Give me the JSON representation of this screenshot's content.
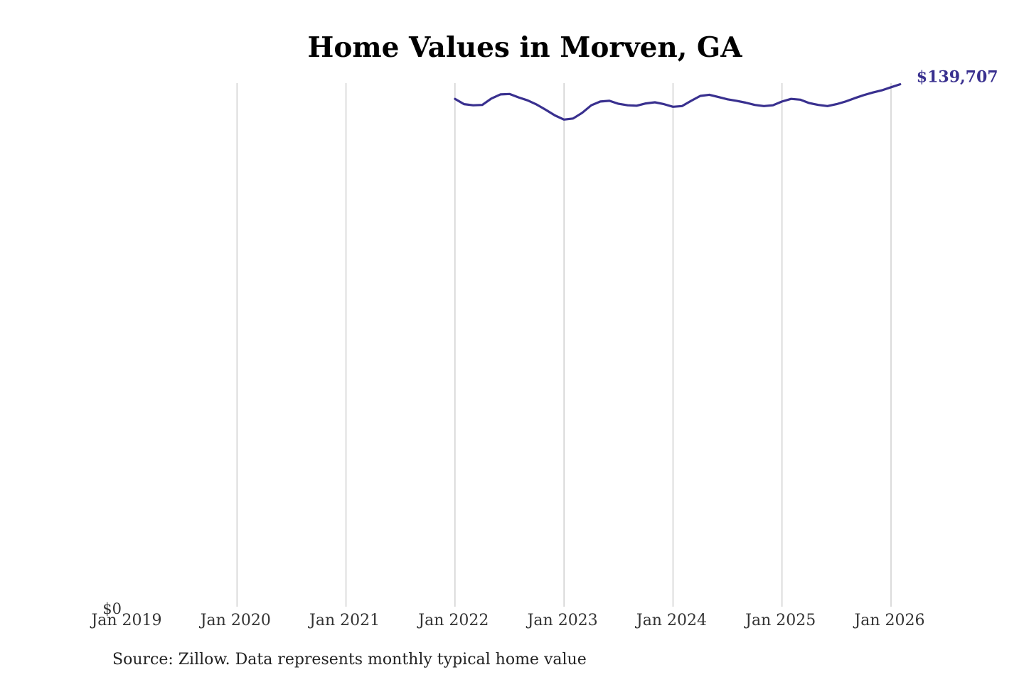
{
  "chart_data": {
    "type": "line",
    "title": "Home Values in Morven, GA",
    "xlabel": "",
    "ylabel": "",
    "x_tick_labels": [
      "Jan 2019",
      "Jan 2020",
      "Jan 2021",
      "Jan 2022",
      "Jan 2023",
      "Jan 2024",
      "Jan 2025",
      "Jan 2026"
    ],
    "y_tick_labels": [
      "$0"
    ],
    "ylim": [
      0,
      140000
    ],
    "xlim": [
      "2019-01",
      "2026-03"
    ],
    "grid": "vertical",
    "line_color": "#39308f",
    "end_label": "$139,707",
    "series": [
      {
        "x": [
          "2022-01",
          "2022-02",
          "2022-03",
          "2022-04",
          "2022-05",
          "2022-06",
          "2022-07",
          "2022-08",
          "2022-09",
          "2022-10",
          "2022-11",
          "2022-12",
          "2023-01",
          "2023-02",
          "2023-03",
          "2023-04",
          "2023-05",
          "2023-06",
          "2023-07",
          "2023-08",
          "2023-09",
          "2023-10",
          "2023-11",
          "2023-12",
          "2024-01",
          "2024-02",
          "2024-03",
          "2024-04",
          "2024-05",
          "2024-06",
          "2024-07",
          "2024-08",
          "2024-09",
          "2024-10",
          "2024-11",
          "2024-12",
          "2025-01",
          "2025-02",
          "2025-03",
          "2025-04",
          "2025-05",
          "2025-06",
          "2025-07",
          "2025-08",
          "2025-09",
          "2025-10",
          "2025-11",
          "2025-12",
          "2026-01",
          "2026-02"
        ],
        "values": [
          135800,
          134400,
          134100,
          134200,
          135900,
          137000,
          137100,
          136200,
          135400,
          134300,
          132900,
          131400,
          130300,
          130600,
          132100,
          134100,
          135100,
          135300,
          134500,
          134100,
          134000,
          134600,
          134900,
          134400,
          133700,
          133900,
          135300,
          136600,
          136900,
          136300,
          135700,
          135300,
          134800,
          134200,
          133900,
          134100,
          135100,
          135800,
          135600,
          134700,
          134200,
          133900,
          134400,
          135100,
          136000,
          136800,
          137500,
          138100,
          138900,
          139707
        ]
      }
    ]
  },
  "source": "Source: Zillow. Data represents monthly typical home value"
}
